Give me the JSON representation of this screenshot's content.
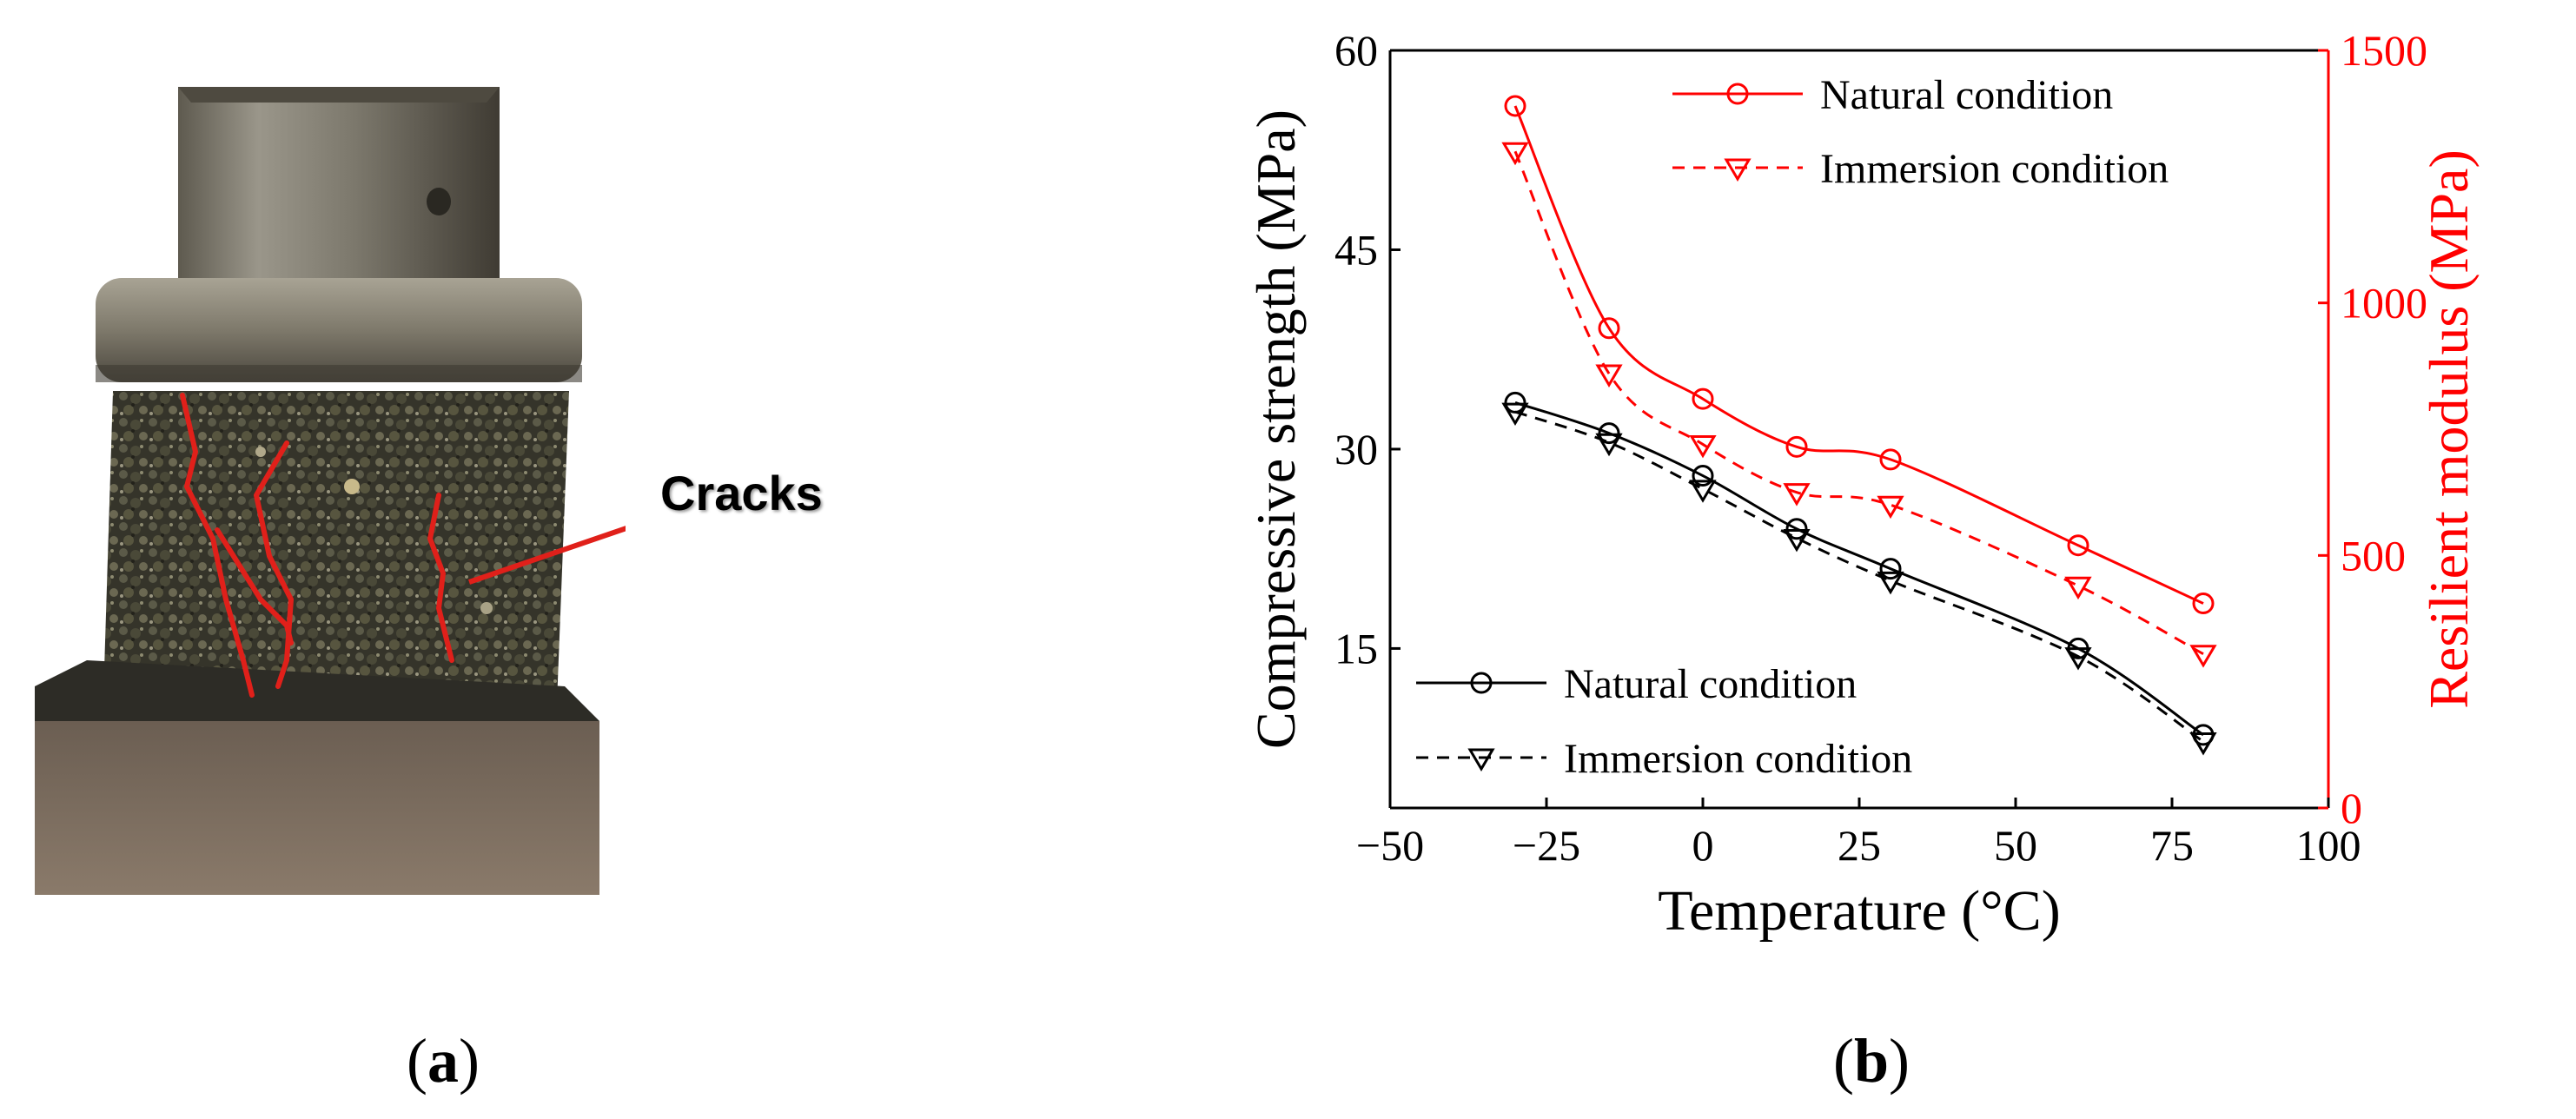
{
  "panel_a": {
    "label_open": "(",
    "label_letter": "a",
    "label_close": ")",
    "annotation": "Cracks",
    "crack_color": "#e0201a"
  },
  "panel_b": {
    "label_open": "(",
    "label_letter": "b",
    "label_close": ")"
  },
  "chart_data": {
    "type": "line",
    "xlabel": "Temperature (°C)",
    "ylabel": "Compressive strength (MPa)",
    "y2label": "Resilient modulus (MPa)",
    "xlim": [
      -50,
      100
    ],
    "ylim": [
      3,
      60
    ],
    "y2lim": [
      0,
      1500
    ],
    "x_ticks": [
      "−50",
      "−25",
      "0",
      "25",
      "50",
      "75",
      "100"
    ],
    "y_ticks": [
      "15",
      "30",
      "45",
      "60"
    ],
    "y2_ticks": [
      "0",
      "500",
      "1000",
      "1500"
    ],
    "colors": {
      "left": "#000000",
      "right": "#ff0000"
    },
    "x": [
      -30,
      -15,
      0,
      15,
      30,
      60,
      80
    ],
    "series": [
      {
        "name": "Natural condition",
        "axis": "left",
        "marker": "circle",
        "dash": false,
        "values": [
          33.5,
          31.2,
          28.0,
          24.0,
          21.0,
          15.0,
          8.5
        ]
      },
      {
        "name": "Immersion condition",
        "axis": "left",
        "marker": "triangle",
        "dash": true,
        "values": [
          32.8,
          30.5,
          27.0,
          23.3,
          20.1,
          14.4,
          8.0
        ]
      },
      {
        "name": "Natural condition",
        "axis": "right",
        "marker": "circle",
        "dash": false,
        "values": [
          1390,
          950,
          810,
          715,
          690,
          520,
          405
        ]
      },
      {
        "name": "Immersion condition",
        "axis": "right",
        "marker": "triangle",
        "dash": true,
        "values": [
          1300,
          860,
          720,
          625,
          600,
          440,
          305
        ]
      }
    ]
  }
}
